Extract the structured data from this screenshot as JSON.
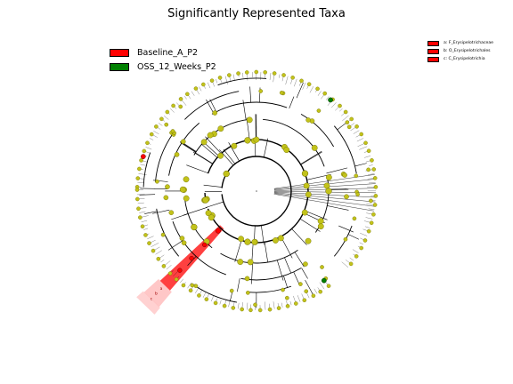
{
  "title": "Significantly Represented Taxa",
  "legend": [
    {
      "label": "Baseline_A_P2",
      "color": "#ff0000"
    },
    {
      "label": "OSS_12_Weeks_P2",
      "color": "#008000"
    }
  ],
  "clade_legend": [
    {
      "text": "a: F_Erysipelotrichaceae",
      "color": "#ff0000"
    },
    {
      "text": "b: O_Erysipelotrichales",
      "color": "#ff0000"
    },
    {
      "text": "c: C_Erysipelotrichia",
      "color": "#ff0000"
    }
  ],
  "clade_letters": [
    "a",
    "b",
    "c"
  ],
  "colors": {
    "node": "#c2c21a",
    "node_edge": "#6b6b00",
    "highlight": "#ff0000",
    "enriched_green": "#008000",
    "line": "#000000"
  }
}
